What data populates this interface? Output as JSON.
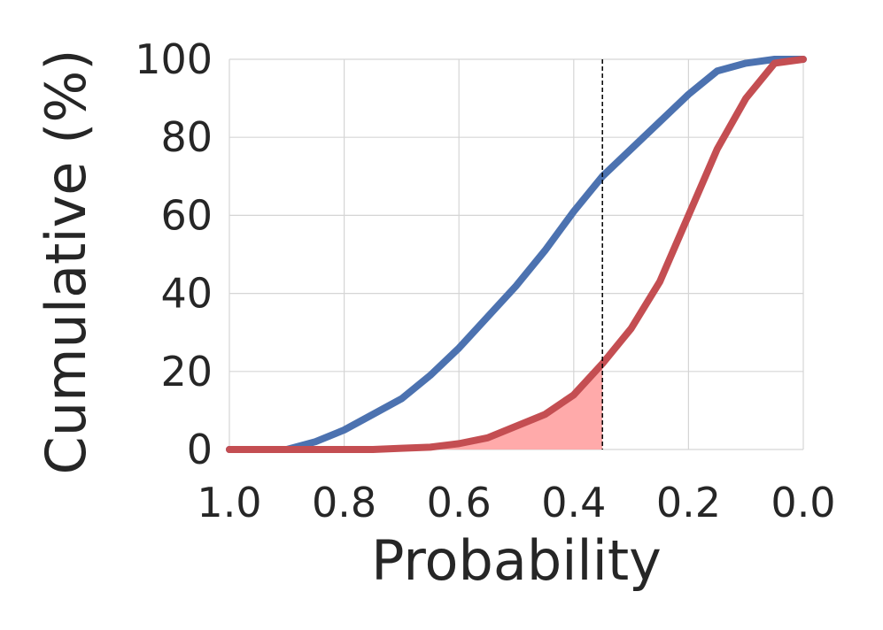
{
  "chart_data": {
    "type": "line",
    "title": "",
    "xlabel": "Probability",
    "ylabel": "Cumulative (%)",
    "xlim": [
      1.0,
      0.0
    ],
    "ylim": [
      0,
      100
    ],
    "x_reversed": true,
    "grid": true,
    "x_ticks": [
      1.0,
      0.8,
      0.6,
      0.4,
      0.2,
      0.0
    ],
    "x_tick_labels": [
      "1.0",
      "0.8",
      "0.6",
      "0.4",
      "0.2",
      "0.0"
    ],
    "y_ticks": [
      0,
      20,
      40,
      60,
      80,
      100
    ],
    "y_tick_labels": [
      "0",
      "20",
      "40",
      "60",
      "80",
      "100"
    ],
    "threshold_x": 0.35,
    "series": [
      {
        "color": "#4c72b0",
        "x": [
          1.0,
          0.95,
          0.9,
          0.85,
          0.8,
          0.75,
          0.7,
          0.65,
          0.6,
          0.55,
          0.5,
          0.45,
          0.4,
          0.35,
          0.3,
          0.25,
          0.2,
          0.15,
          0.1,
          0.05,
          0.0
        ],
        "y": [
          0,
          0,
          0,
          2,
          5,
          9,
          13,
          19,
          26,
          34,
          42,
          51,
          61,
          70,
          77,
          84,
          91,
          97,
          99,
          100,
          100
        ]
      },
      {
        "color": "#c44e52",
        "x": [
          1.0,
          0.95,
          0.9,
          0.85,
          0.8,
          0.75,
          0.7,
          0.65,
          0.6,
          0.55,
          0.5,
          0.45,
          0.4,
          0.35,
          0.3,
          0.25,
          0.2,
          0.15,
          0.1,
          0.05,
          0.0
        ],
        "y": [
          0,
          0,
          0,
          0,
          0,
          0,
          0.3,
          0.6,
          1.5,
          3,
          6,
          9,
          14,
          22,
          31,
          43,
          60,
          77,
          90,
          99,
          100
        ],
        "fill_color": "#ffaaaa",
        "fill_until_x": 0.35
      }
    ]
  }
}
